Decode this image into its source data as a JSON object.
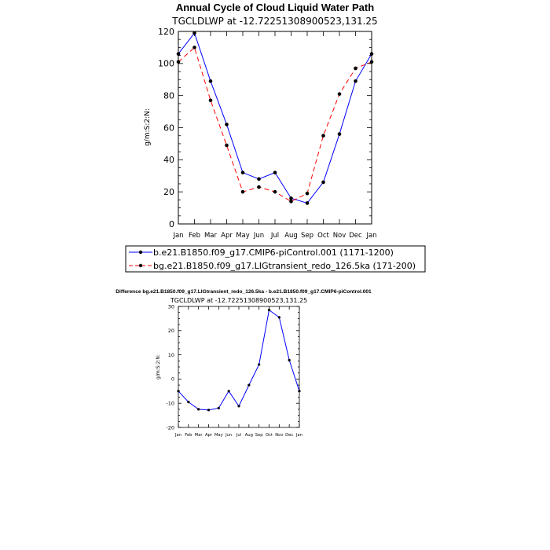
{
  "chart_data": [
    {
      "type": "line",
      "title": "Annual Cycle of Cloud Liquid Water Path",
      "subtitle": "TGCLDLWP at -12.72251308900523,131.25",
      "xlabel": "",
      "ylabel": "g/m:S:2:N:",
      "categories": [
        "Jan",
        "Feb",
        "Mar",
        "Apr",
        "May",
        "Jun",
        "Jul",
        "Aug",
        "Sep",
        "Oct",
        "Nov",
        "Dec",
        "Jan"
      ],
      "ylim": [
        0,
        120
      ],
      "yticks": [
        0,
        20,
        40,
        60,
        80,
        100,
        120
      ],
      "series": [
        {
          "name": "b.e21.B1850.f09_g17.CMIP6-piControl.001 (1171-1200)",
          "color": "#0000ff",
          "dash": "solid",
          "values": [
            106,
            119,
            89,
            62,
            32,
            28,
            32,
            16,
            13,
            26,
            56,
            89,
            106
          ]
        },
        {
          "name": "bg.e21.B1850.f09_g17.LIGtransient_redo_126.5ka (171-200)",
          "color": "#ff0000",
          "dash": "dashed",
          "values": [
            101,
            110,
            77,
            49,
            20,
            23,
            20,
            14,
            19,
            55,
            81,
            97,
            101
          ]
        }
      ],
      "legend": "bottom"
    },
    {
      "type": "line",
      "title": "Difference bg.e21.B1850.f09_g17.LIGtransient_redo_126.5ka - b.e21.B1850.f09_g17.CMIP6-piControl.001",
      "subtitle": "TGCLDLWP at -12.72251308900523,131.25",
      "xlabel": "",
      "ylabel": "g/m:S:2:N:",
      "categories": [
        "Jan",
        "Feb",
        "Mar",
        "Apr",
        "May",
        "Jun",
        "Jul",
        "Aug",
        "Sep",
        "Oct",
        "Nov",
        "Dec",
        "Jan"
      ],
      "ylim": [
        -20,
        30
      ],
      "yticks": [
        -20,
        -10,
        0,
        10,
        20,
        30
      ],
      "series": [
        {
          "name": "Difference",
          "color": "#0000ff",
          "dash": "solid",
          "values": [
            -5,
            -9.5,
            -12.5,
            -12.8,
            -12,
            -5,
            -11.2,
            -2.5,
            6,
            28.5,
            25.5,
            7.8,
            -5
          ]
        }
      ]
    }
  ]
}
